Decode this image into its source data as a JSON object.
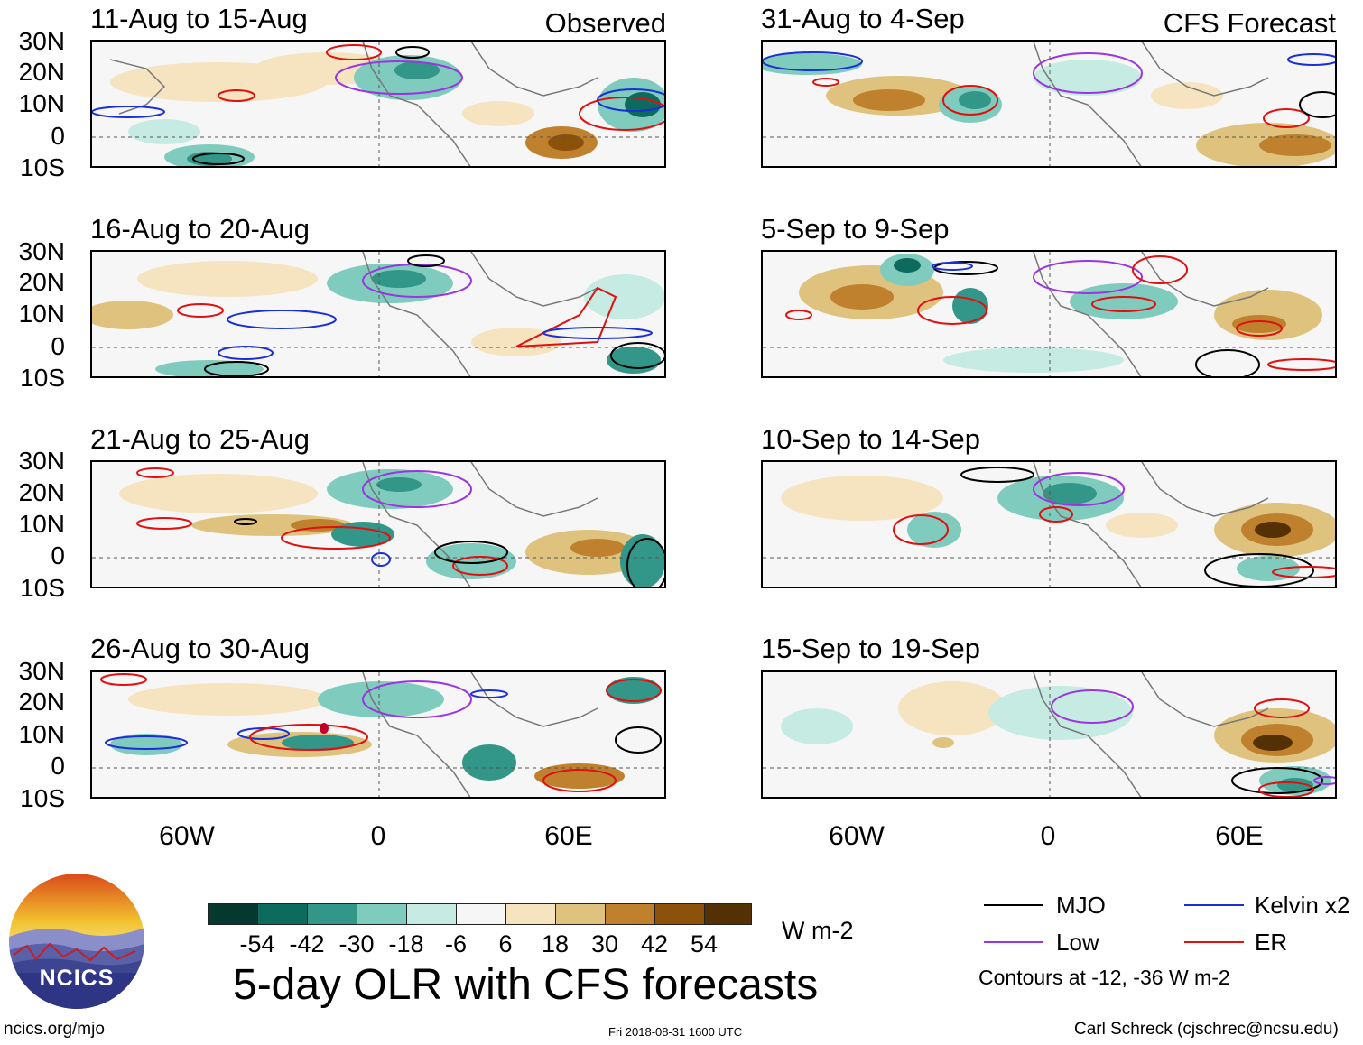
{
  "figure": {
    "title": "5-day OLR with CFS forecasts",
    "units": "W m-2",
    "contour_note": "Contours at -12, -36 W m-2",
    "footer_left": "ncics.org/mjo",
    "footer_center": "Fri 2018-08-31 1600 UTC",
    "footer_right": "Carl Schreck (cjschrec@ncsu.edu)",
    "logo_text": "NCICS"
  },
  "columns": {
    "observed_label": "Observed",
    "forecast_label": "CFS Forecast"
  },
  "panels": [
    {
      "title": "11-Aug to 15-Aug",
      "kind": "observed"
    },
    {
      "title": "16-Aug to 20-Aug",
      "kind": "observed"
    },
    {
      "title": "21-Aug to 25-Aug",
      "kind": "observed"
    },
    {
      "title": "26-Aug to 30-Aug",
      "kind": "observed"
    },
    {
      "title": "31-Aug to 4-Sep",
      "kind": "forecast"
    },
    {
      "title": "5-Sep to 9-Sep",
      "kind": "forecast"
    },
    {
      "title": "10-Sep to 14-Sep",
      "kind": "forecast"
    },
    {
      "title": "15-Sep to 19-Sep",
      "kind": "forecast"
    }
  ],
  "axes": {
    "lat_labels": [
      "30N",
      "20N",
      "10N",
      "0",
      "10S"
    ],
    "lon_labels": [
      "60W",
      "0",
      "60E"
    ]
  },
  "colorbar": {
    "colors": [
      "#05392f",
      "#0d6b5e",
      "#329688",
      "#7fcbbd",
      "#c6ebe3",
      "#f6f6f6",
      "#f5e4bf",
      "#dfc27d",
      "#bf812d",
      "#8c510a",
      "#543005"
    ],
    "labels": [
      "-54",
      "-42",
      "-30",
      "-18",
      "-6",
      "6",
      "18",
      "30",
      "42",
      "54"
    ]
  },
  "legend": [
    {
      "label": "MJO",
      "color": "#000000"
    },
    {
      "label": "Kelvin x2",
      "color": "#1a2fd6"
    },
    {
      "label": "Low",
      "color": "#9b35e0"
    },
    {
      "label": "ER",
      "color": "#e01010"
    }
  ]
}
